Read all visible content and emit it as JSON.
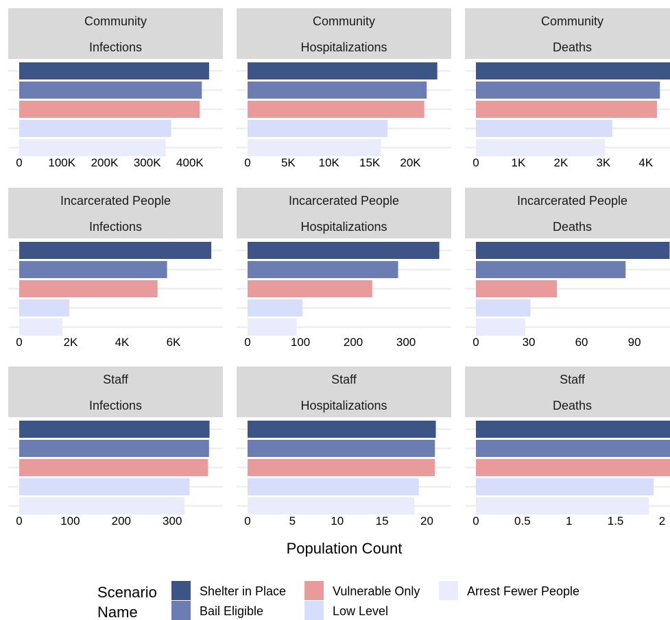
{
  "chart_data": {
    "type": "bar",
    "orientation": "horizontal",
    "facet_layout": {
      "rows": 3,
      "cols": 3
    },
    "xlabel": "Population Count",
    "legend": {
      "title": [
        "Scenario",
        "Name"
      ],
      "position": "bottom",
      "entries": [
        {
          "name": "Shelter in Place",
          "color": "#3d5487"
        },
        {
          "name": "Bail Eligible",
          "color": "#6b7db3"
        },
        {
          "name": "Vulnerable Only",
          "color": "#e99b9b"
        },
        {
          "name": "Low Level",
          "color": "#d6defc"
        },
        {
          "name": "Arrest Fewer People",
          "color": "#e8ecfd"
        }
      ]
    },
    "panels": [
      {
        "strip": [
          "Community",
          "Infections"
        ],
        "xlim": [
          0,
          458000
        ],
        "ticks": [
          {
            "v": 0,
            "label": "0"
          },
          {
            "v": 100000,
            "label": "100K"
          },
          {
            "v": 200000,
            "label": "200K"
          },
          {
            "v": 300000,
            "label": "300K"
          },
          {
            "v": 400000,
            "label": "400K"
          }
        ],
        "values": [
          445000,
          428000,
          423000,
          356000,
          343000
        ]
      },
      {
        "strip": [
          "Community",
          "Hospitalizations"
        ],
        "xlim": [
          0,
          24000
        ],
        "ticks": [
          {
            "v": 0,
            "label": "0"
          },
          {
            "v": 5000,
            "label": "5K"
          },
          {
            "v": 10000,
            "label": "10K"
          },
          {
            "v": 15000,
            "label": "15K"
          },
          {
            "v": 20000,
            "label": "20K"
          }
        ],
        "values": [
          23300,
          22000,
          21700,
          17200,
          16400
        ]
      },
      {
        "strip": [
          "Community",
          "Deaths"
        ],
        "xlim": [
          0,
          4600
        ],
        "ticks": [
          {
            "v": 0,
            "label": "0"
          },
          {
            "v": 1000,
            "label": "1K"
          },
          {
            "v": 2000,
            "label": "2K"
          },
          {
            "v": 3000,
            "label": "3K"
          },
          {
            "v": 4000,
            "label": "4K"
          }
        ],
        "values": [
          4650,
          4330,
          4260,
          3210,
          3040
        ]
      },
      {
        "strip": [
          "Incarcerated People",
          "Infections"
        ],
        "xlim": [
          0,
          7600
        ],
        "ticks": [
          {
            "v": 0,
            "label": "0"
          },
          {
            "v": 2000,
            "label": "2K"
          },
          {
            "v": 4000,
            "label": "4K"
          },
          {
            "v": 6000,
            "label": "6K"
          }
        ],
        "values": [
          7470,
          5750,
          5380,
          1950,
          1680
        ]
      },
      {
        "strip": [
          "Incarcerated People",
          "Hospitalizations"
        ],
        "xlim": [
          0,
          370
        ],
        "ticks": [
          {
            "v": 0,
            "label": "0"
          },
          {
            "v": 100,
            "label": "100"
          },
          {
            "v": 200,
            "label": "200"
          },
          {
            "v": 300,
            "label": "300"
          }
        ],
        "values": [
          363,
          285,
          236,
          104,
          93
        ]
      },
      {
        "strip": [
          "Incarcerated People",
          "Deaths"
        ],
        "xlim": [
          0,
          111
        ],
        "ticks": [
          {
            "v": 0,
            "label": "0"
          },
          {
            "v": 30,
            "label": "30"
          },
          {
            "v": 60,
            "label": "60"
          },
          {
            "v": 90,
            "label": "90"
          }
        ],
        "values": [
          110,
          85,
          46,
          31,
          28
        ]
      },
      {
        "strip": [
          "Staff",
          "Infections"
        ],
        "xlim": [
          0,
          383
        ],
        "ticks": [
          {
            "v": 0,
            "label": "0"
          },
          {
            "v": 100,
            "label": "100"
          },
          {
            "v": 200,
            "label": "200"
          },
          {
            "v": 300,
            "label": "300"
          }
        ],
        "values": [
          373,
          372,
          370,
          334,
          324
        ]
      },
      {
        "strip": [
          "Staff",
          "Hospitalizations"
        ],
        "xlim": [
          0,
          21.8
        ],
        "ticks": [
          {
            "v": 0,
            "label": "0"
          },
          {
            "v": 5,
            "label": "5"
          },
          {
            "v": 10,
            "label": "10"
          },
          {
            "v": 15,
            "label": "15"
          },
          {
            "v": 20,
            "label": "20"
          }
        ],
        "values": [
          21.0,
          20.9,
          20.9,
          19.1,
          18.6
        ]
      },
      {
        "strip": [
          "Staff",
          "Deaths"
        ],
        "xlim": [
          0,
          2.1
        ],
        "ticks": [
          {
            "v": 0,
            "label": "0"
          },
          {
            "v": 0.5,
            "label": "0.5"
          },
          {
            "v": 1,
            "label": "1"
          },
          {
            "v": 1.5,
            "label": "1.5"
          },
          {
            "v": 2,
            "label": "2"
          }
        ],
        "values": [
          2.13,
          2.11,
          2.11,
          1.91,
          1.86
        ]
      }
    ]
  }
}
